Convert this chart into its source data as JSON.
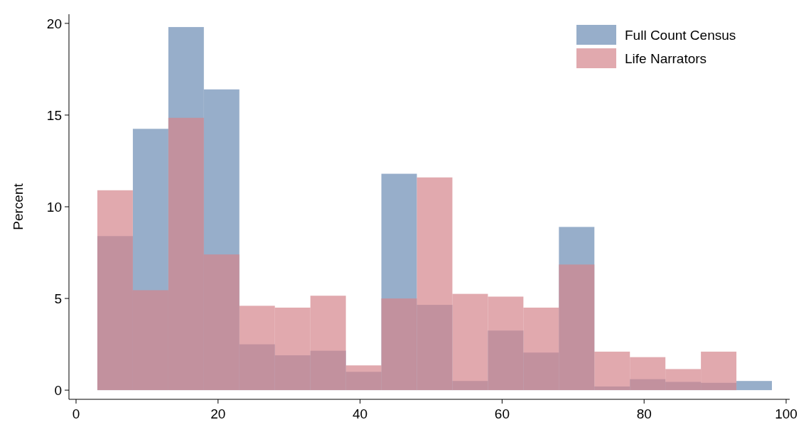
{
  "chart_data": {
    "type": "histogram",
    "ylabel": "Percent",
    "bins": [
      3,
      8,
      13,
      18,
      23,
      28,
      33,
      38,
      43,
      48,
      53,
      58,
      63,
      68,
      73,
      78,
      83,
      88,
      93,
      98
    ],
    "series": [
      {
        "name": "Full Count Census",
        "color": "#6b8cb3",
        "values": [
          8.4,
          14.25,
          19.8,
          16.4,
          2.5,
          1.9,
          2.15,
          1.0,
          11.8,
          4.65,
          0.5,
          3.25,
          2.05,
          8.9,
          0.2,
          0.6,
          0.45,
          0.4,
          0.5
        ]
      },
      {
        "name": "Life Narrators",
        "color": "#d4858c",
        "values": [
          10.9,
          5.45,
          14.85,
          7.4,
          4.6,
          4.5,
          5.15,
          1.35,
          5.0,
          11.6,
          5.25,
          5.1,
          4.5,
          6.85,
          2.1,
          1.8,
          1.15,
          2.1,
          0
        ]
      }
    ],
    "xlim": [
      -1,
      100.5
    ],
    "ylim": [
      -0.5,
      20.5
    ],
    "xticks": [
      0,
      20,
      40,
      60,
      80,
      100
    ],
    "yticks": [
      0,
      5,
      10,
      15,
      20
    ],
    "legend": "top right"
  }
}
